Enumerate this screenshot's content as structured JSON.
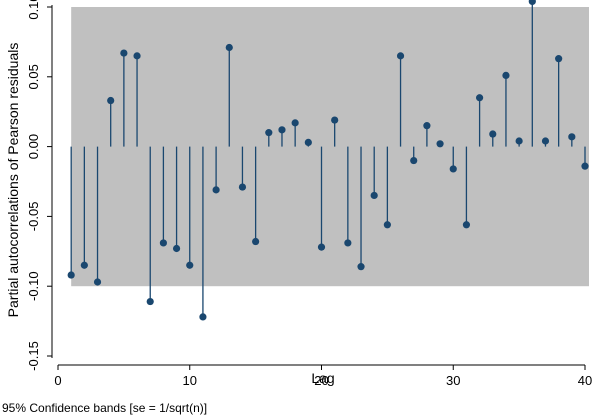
{
  "chart_data": {
    "type": "stem",
    "xlabel": "Lag",
    "ylabel": "Partial autocorrelations of Pearson residuals",
    "note": "95% Confidence bands [se = 1/sqrt(n)]",
    "xlim": [
      0,
      40
    ],
    "ylim": [
      -0.15,
      0.1
    ],
    "x_ticks": [
      0,
      10,
      20,
      30,
      40
    ],
    "x_tick_labels": [
      "0",
      "10",
      "20",
      "30",
      "40"
    ],
    "y_ticks": [
      0.1,
      0.05,
      0.0,
      -0.05,
      -0.1,
      -0.15
    ],
    "y_tick_labels": [
      "0.10",
      "0.05",
      "0.00",
      "-0.05",
      "-0.10",
      "-0.15"
    ],
    "confidence_band": [
      -0.1,
      0.1
    ],
    "band_color": "#c0c0c0",
    "marker_color": "#1a476f",
    "x": [
      1,
      2,
      3,
      4,
      5,
      6,
      7,
      8,
      9,
      10,
      11,
      12,
      13,
      14,
      15,
      16,
      17,
      18,
      19,
      20,
      21,
      22,
      23,
      24,
      25,
      26,
      27,
      28,
      29,
      30,
      31,
      32,
      33,
      34,
      35,
      36,
      37,
      38,
      39,
      40
    ],
    "values": [
      -0.092,
      -0.085,
      -0.097,
      0.033,
      0.067,
      0.065,
      -0.111,
      -0.069,
      -0.073,
      -0.085,
      -0.122,
      -0.031,
      0.071,
      -0.029,
      -0.068,
      0.01,
      0.012,
      0.017,
      0.003,
      -0.072,
      0.019,
      -0.069,
      -0.086,
      -0.035,
      -0.056,
      0.065,
      -0.01,
      0.015,
      0.002,
      -0.016,
      -0.056,
      0.035,
      0.009,
      0.051,
      0.004,
      0.104,
      0.004,
      0.063,
      0.007,
      -0.014
    ]
  }
}
